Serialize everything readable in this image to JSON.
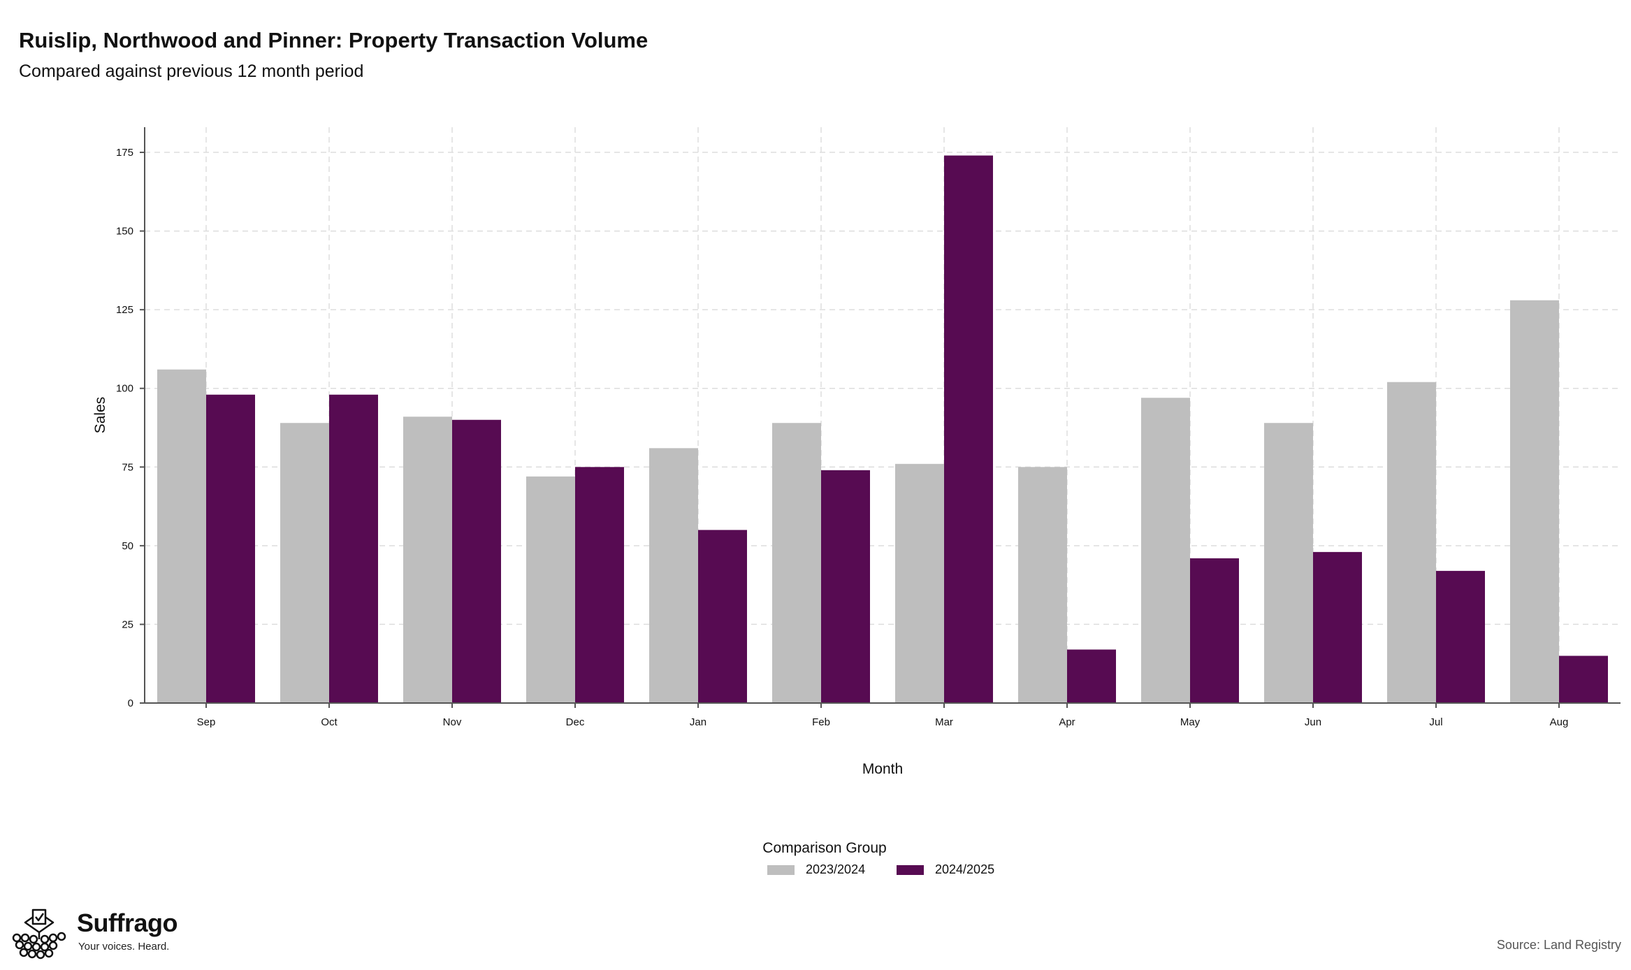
{
  "header": {
    "title": "Ruislip, Northwood and Pinner: Property Transaction Volume",
    "subtitle": "Compared against previous 12 month period"
  },
  "chart_data": {
    "type": "bar",
    "title": "Ruislip, Northwood and Pinner: Property Transaction Volume",
    "subtitle": "Compared against previous 12 month period",
    "xlabel": "Month",
    "ylabel": "Sales",
    "categories": [
      "Sep",
      "Oct",
      "Nov",
      "Dec",
      "Jan",
      "Feb",
      "Mar",
      "Apr",
      "May",
      "Jun",
      "Jul",
      "Aug"
    ],
    "series": [
      {
        "name": "2023/2024",
        "color": "#bebebe",
        "values": [
          106,
          89,
          91,
          72,
          81,
          89,
          76,
          75,
          97,
          89,
          102,
          128
        ]
      },
      {
        "name": "2024/2025",
        "color": "#570b52",
        "values": [
          98,
          98,
          90,
          75,
          55,
          74,
          174,
          17,
          46,
          48,
          42,
          15
        ]
      }
    ],
    "ylim": [
      0,
      183
    ],
    "yticks": [
      0,
      25,
      50,
      75,
      100,
      125,
      150,
      175
    ],
    "grid": true,
    "legend": {
      "title": "Comparison Group",
      "position": "bottom"
    }
  },
  "footer": {
    "brand": "Suffrago",
    "tagline": "Your voices. Heard.",
    "source": "Source: Land Registry",
    "logo_icon": "ballot-box-icon"
  }
}
